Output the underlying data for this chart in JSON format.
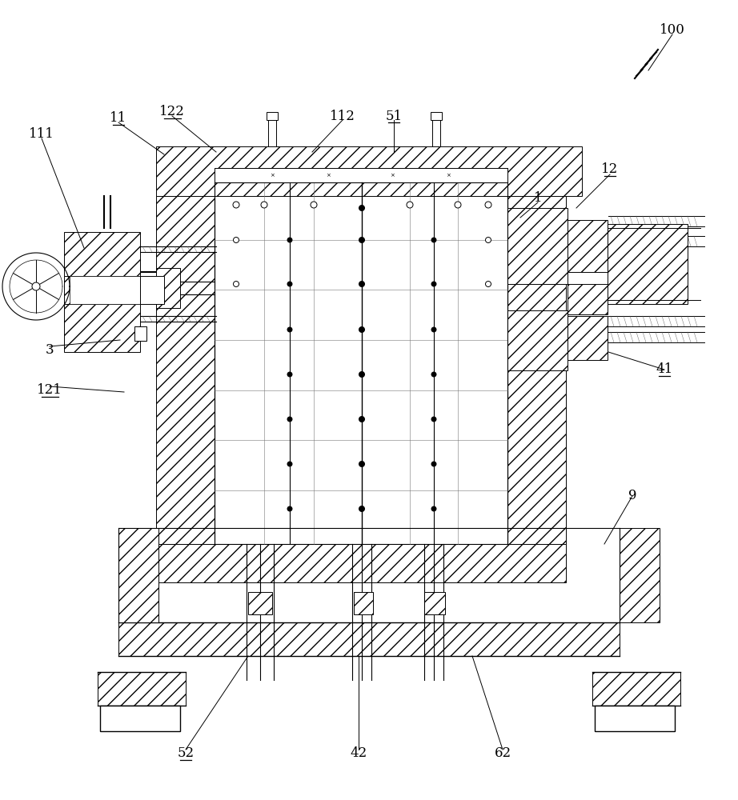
{
  "bg_color": "#ffffff",
  "fig_width": 9.22,
  "fig_height": 10.0,
  "labels": [
    [
      "100",
      840,
      38,
      false
    ],
    [
      "1",
      672,
      248,
      false
    ],
    [
      "11",
      148,
      148,
      false
    ],
    [
      "111",
      52,
      168,
      false
    ],
    [
      "112",
      428,
      145,
      false
    ],
    [
      "12",
      762,
      212,
      true
    ],
    [
      "121",
      62,
      488,
      true
    ],
    [
      "122",
      215,
      140,
      false
    ],
    [
      "3",
      62,
      438,
      false
    ],
    [
      "41",
      830,
      462,
      true
    ],
    [
      "42",
      448,
      942,
      false
    ],
    [
      "51",
      492,
      145,
      true
    ],
    [
      "52",
      232,
      942,
      true
    ],
    [
      "62",
      628,
      942,
      false
    ],
    [
      "9",
      790,
      620,
      false
    ]
  ],
  "leader_lines": [
    [
      840,
      43,
      810,
      88
    ],
    [
      672,
      253,
      650,
      272
    ],
    [
      148,
      153,
      205,
      193
    ],
    [
      52,
      173,
      105,
      310
    ],
    [
      428,
      150,
      390,
      190
    ],
    [
      762,
      218,
      720,
      260
    ],
    [
      62,
      483,
      155,
      490
    ],
    [
      215,
      145,
      270,
      190
    ],
    [
      62,
      433,
      150,
      425
    ],
    [
      830,
      462,
      760,
      440
    ],
    [
      448,
      937,
      448,
      820
    ],
    [
      492,
      150,
      492,
      190
    ],
    [
      232,
      937,
      310,
      820
    ],
    [
      628,
      937,
      590,
      820
    ],
    [
      790,
      620,
      755,
      680
    ]
  ]
}
